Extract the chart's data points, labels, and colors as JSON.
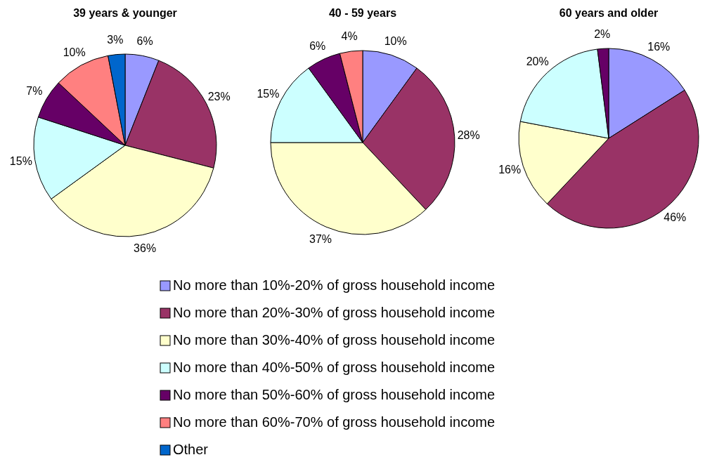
{
  "chart_data": [
    {
      "type": "pie",
      "title": "39 years & younger",
      "categories": [
        null,
        null,
        null,
        null,
        null,
        null,
        null
      ],
      "values": [
        6,
        23,
        36,
        15,
        7,
        10,
        3
      ],
      "value_labels": [
        "6%",
        "23%",
        "36%",
        "15%",
        "7%",
        "10%",
        "3%"
      ],
      "colors": [
        "#9999ff",
        "#993366",
        "#ffffcc",
        "#ccffff",
        "#660066",
        "#ff8080",
        "#0066cc"
      ]
    },
    {
      "type": "pie",
      "title": "40 - 59 years",
      "categories": [
        "No more than 10%-20% of gross household income",
        "No more than 20%-30% of gross household income",
        "No more than 30%-40% of gross household income",
        "No more than 40%-50% of gross household income",
        "No more than 50%-60% of gross household income",
        "No more than 60%-70% of gross household income",
        "Other"
      ],
      "values": [
        10,
        28,
        37,
        15,
        6,
        4,
        null
      ],
      "value_labels": [
        "10%",
        "28%",
        "37%",
        "15%",
        "6%",
        "4%",
        null
      ],
      "colors": [
        "#9999ff",
        "#993366",
        "#ffffcc",
        "#ccffff",
        "#660066",
        "#ff8080",
        "#0066cc"
      ],
      "legend": "bottom"
    },
    {
      "type": "pie",
      "title": "60 years and older",
      "categories": [
        null,
        null,
        null,
        null,
        null
      ],
      "values": [
        16,
        46,
        16,
        20,
        2
      ],
      "value_labels": [
        "16%",
        "46%",
        "16%",
        "20%",
        "2%"
      ],
      "colors": [
        "#9999ff",
        "#993366",
        "#ffffcc",
        "#ccffff",
        "#660066"
      ]
    }
  ]
}
